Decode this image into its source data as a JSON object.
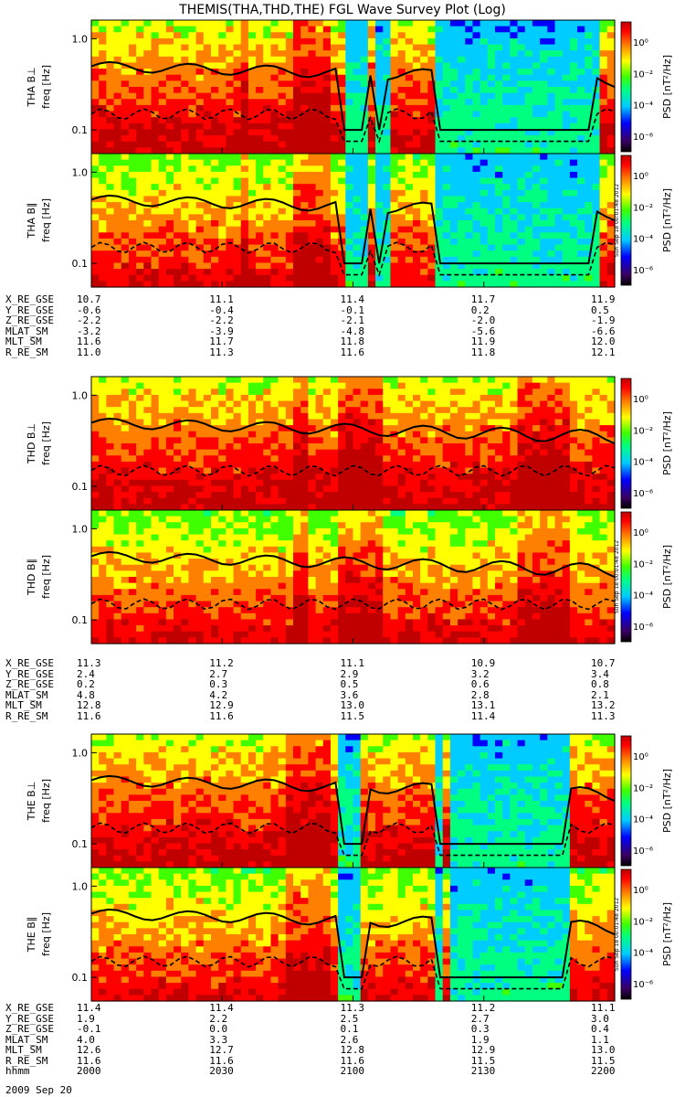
{
  "title": "THEMIS(THA,THD,THE) FGL Wave Survey Plot (Log)",
  "colorbar": {
    "label": "PSD [nT²/Hz]",
    "ticks": [
      "10⁰",
      "10⁻²",
      "10⁻⁴",
      "10⁻⁶"
    ],
    "tick_exponents": [
      0,
      -2,
      -4,
      -6
    ],
    "range_log": [
      -7,
      1.3
    ],
    "colors": [
      "#000000",
      "#3a0060",
      "#0000ff",
      "#00ccff",
      "#00ff80",
      "#40ff00",
      "#ffff00",
      "#ff8000",
      "#ff0000",
      "#c00000"
    ]
  },
  "stamp": "Sun Sep 18 00:01:48 2012",
  "ylabel_common": "freq [Hz]",
  "chart_data": {
    "type": "heatmap",
    "xaxis": {
      "label": "hhmm",
      "ticks": [
        "2000",
        "2030",
        "2100",
        "2130",
        "2200"
      ],
      "date": "2009 Sep 20"
    },
    "yaxis": {
      "scale": "log",
      "range_hz": [
        0.055,
        1.6
      ],
      "ticks": [
        "0.1",
        "1.0"
      ]
    },
    "panels": [
      {
        "probe": "THA",
        "component": "B⊥",
        "ylabel": "THA B⊥",
        "gap_after": false
      },
      {
        "probe": "THA",
        "component": "B∥",
        "ylabel": "THA B∥",
        "gap_after": true
      },
      {
        "probe": "THD",
        "component": "B⊥",
        "ylabel": "THD B⊥",
        "gap_after": false
      },
      {
        "probe": "THD",
        "component": "B∥",
        "ylabel": "THD B∥",
        "gap_after": true
      },
      {
        "probe": "THE",
        "component": "B⊥",
        "ylabel": "THE B⊥",
        "gap_after": false
      },
      {
        "probe": "THE",
        "component": "B∥",
        "ylabel": "THE B∥",
        "gap_after": true
      }
    ],
    "series_lines": [
      {
        "style": "solid"
      },
      {
        "style": "dashed"
      }
    ]
  },
  "ephemeris": [
    {
      "probe": "THA",
      "rows": [
        {
          "label": "X_RE_GSE",
          "values": [
            "10.7",
            "11.1",
            "11.4",
            "11.7",
            "11.9"
          ]
        },
        {
          "label": "Y_RE_GSE",
          "values": [
            "-0.6",
            "-0.4",
            "-0.1",
            "0.2",
            "0.5"
          ]
        },
        {
          "label": "Z_RE_GSE",
          "values": [
            "-2.2",
            "-2.2",
            "-2.1",
            "-2.0",
            "-1.9"
          ]
        },
        {
          "label": "MLAT_SM",
          "values": [
            "-3.2",
            "-3.9",
            "-4.8",
            "-5.6",
            "-6.6"
          ]
        },
        {
          "label": "MLT_SM",
          "values": [
            "11.6",
            "11.7",
            "11.8",
            "11.9",
            "12.0"
          ]
        },
        {
          "label": "R_RE_SM",
          "values": [
            "11.0",
            "11.3",
            "11.6",
            "11.8",
            "12.1"
          ]
        }
      ]
    },
    {
      "probe": "THD",
      "rows": [
        {
          "label": "X_RE_GSE",
          "values": [
            "11.3",
            "11.2",
            "11.1",
            "10.9",
            "10.7"
          ]
        },
        {
          "label": "Y_RE_GSE",
          "values": [
            "2.4",
            "2.7",
            "2.9",
            "3.2",
            "3.4"
          ]
        },
        {
          "label": "Z_RE_GSE",
          "values": [
            "0.2",
            "0.3",
            "0.5",
            "0.6",
            "0.8"
          ]
        },
        {
          "label": "MLAT_SM",
          "values": [
            "4.8",
            "4.2",
            "3.6",
            "2.8",
            "2.1"
          ]
        },
        {
          "label": "MLT_SM",
          "values": [
            "12.8",
            "12.9",
            "13.0",
            "13.1",
            "13.2"
          ]
        },
        {
          "label": "R_RE_SM",
          "values": [
            "11.6",
            "11.6",
            "11.5",
            "11.4",
            "11.3"
          ]
        }
      ]
    },
    {
      "probe": "THE",
      "rows": [
        {
          "label": "X_RE_GSE",
          "values": [
            "11.4",
            "11.4",
            "11.3",
            "11.2",
            "11.1"
          ]
        },
        {
          "label": "Y_RE_GSE",
          "values": [
            "1.9",
            "2.2",
            "2.5",
            "2.7",
            "3.0"
          ]
        },
        {
          "label": "Z_RE_GSE",
          "values": [
            "-0.1",
            "0.0",
            "0.1",
            "0.3",
            "0.4"
          ]
        },
        {
          "label": "MLAT_SM",
          "values": [
            "4.0",
            "3.3",
            "2.6",
            "1.9",
            "1.1"
          ]
        },
        {
          "label": "MLT_SM",
          "values": [
            "12.6",
            "12.7",
            "12.8",
            "12.9",
            "13.0"
          ]
        },
        {
          "label": "R_RE_SM",
          "values": [
            "11.6",
            "11.6",
            "11.6",
            "11.5",
            "11.5"
          ]
        },
        {
          "label": "hhmm",
          "values": [
            "2000",
            "2030",
            "2100",
            "2130",
            "2200"
          ]
        }
      ]
    }
  ]
}
